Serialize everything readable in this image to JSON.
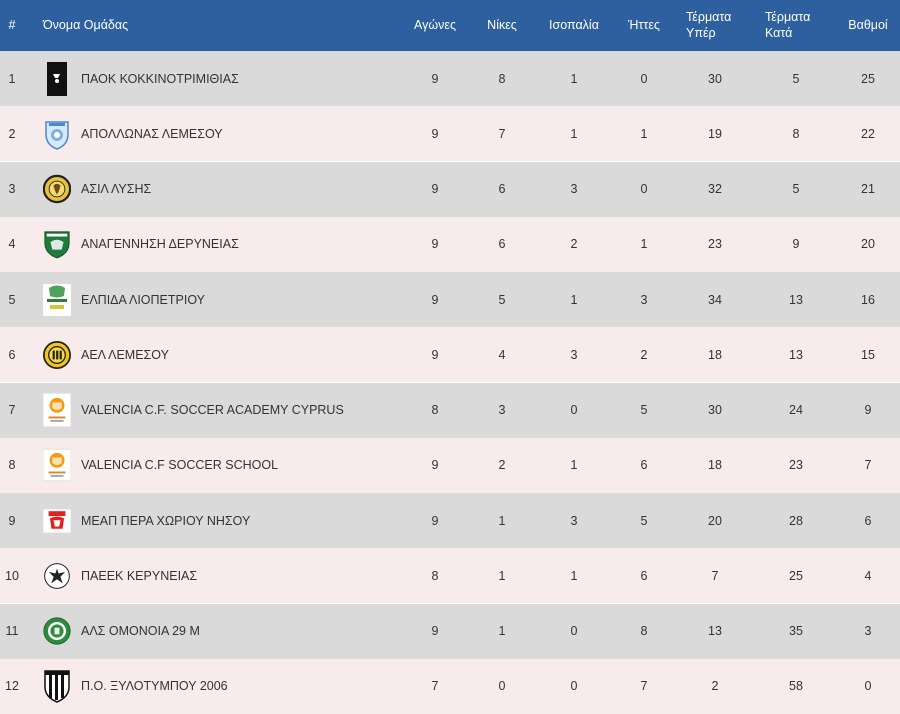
{
  "header": {
    "rank": "#",
    "team": "Όνομα Ομάδας",
    "played": "Αγώνες",
    "wins": "Νίκες",
    "draws": "Ισοπαλία",
    "losses": "Ήττες",
    "goals_for_1": "Τέρματα",
    "goals_for_2": "Υπέρ",
    "goals_against_1": "Τέρματα",
    "goals_against_2": "Κατά",
    "points": "Βαθμοί"
  },
  "colors": {
    "header_bg": "#2e5f9f",
    "row_odd": "#dadada",
    "row_even": "#f8ebeb"
  },
  "rows": [
    {
      "rank": "1",
      "team": "ΠΑΟΚ ΚΟΚΚΙΝΟΤΡΙΜΙΘΙΑΣ",
      "logo": "paok-badge",
      "played": "9",
      "wins": "8",
      "draws": "1",
      "losses": "0",
      "gf": "30",
      "ga": "5",
      "pts": "25"
    },
    {
      "rank": "2",
      "team": "ΑΠΟΛΛΩΝΑΣ ΛΕΜΕΣΟΥ",
      "logo": "apollon-badge",
      "played": "9",
      "wins": "7",
      "draws": "1",
      "losses": "1",
      "gf": "19",
      "ga": "8",
      "pts": "22"
    },
    {
      "rank": "3",
      "team": "ΑΣΙΛ ΛΥΣΗΣ",
      "logo": "asil-badge",
      "played": "9",
      "wins": "6",
      "draws": "3",
      "losses": "0",
      "gf": "32",
      "ga": "5",
      "pts": "21"
    },
    {
      "rank": "4",
      "team": "ΑΝΑΓΕΝΝΗΣΗ ΔΕΡΥΝΕΙΑΣ",
      "logo": "anagennisi-badge",
      "played": "9",
      "wins": "6",
      "draws": "2",
      "losses": "1",
      "gf": "23",
      "ga": "9",
      "pts": "20"
    },
    {
      "rank": "5",
      "team": "ΕΛΠΙΔΑ ΛΙΟΠΕΤΡΙΟΥ",
      "logo": "elpida-badge",
      "played": "9",
      "wins": "5",
      "draws": "1",
      "losses": "3",
      "gf": "34",
      "ga": "13",
      "pts": "16"
    },
    {
      "rank": "6",
      "team": "ΑΕΛ ΛΕΜΕΣΟΥ",
      "logo": "ael-badge",
      "played": "9",
      "wins": "4",
      "draws": "3",
      "losses": "2",
      "gf": "18",
      "ga": "13",
      "pts": "15"
    },
    {
      "rank": "7",
      "team": "VALENCIA C.F. SOCCER ACADEMY CYPRUS",
      "logo": "valencia-academy-badge",
      "played": "8",
      "wins": "3",
      "draws": "0",
      "losses": "5",
      "gf": "30",
      "ga": "24",
      "pts": "9"
    },
    {
      "rank": "8",
      "team": "VALENCIA C.F SOCCER SCHOOL",
      "logo": "valencia-school-badge",
      "played": "9",
      "wins": "2",
      "draws": "1",
      "losses": "6",
      "gf": "18",
      "ga": "23",
      "pts": "7"
    },
    {
      "rank": "9",
      "team": "ΜΕΑΠ ΠΕΡΑ ΧΩΡΙΟΥ ΝΗΣΟΥ",
      "logo": "meap-badge",
      "played": "9",
      "wins": "1",
      "draws": "3",
      "losses": "5",
      "gf": "20",
      "ga": "28",
      "pts": "6"
    },
    {
      "rank": "10",
      "team": "ΠΑΕΕΚ ΚΕΡΥΝΕΙΑΣ",
      "logo": "paeek-badge",
      "played": "8",
      "wins": "1",
      "draws": "1",
      "losses": "6",
      "gf": "7",
      "ga": "25",
      "pts": "4"
    },
    {
      "rank": "11",
      "team": "ΑΛΣ ΟΜΟΝΟΙΑ 29 Μ",
      "logo": "omonoia-badge",
      "played": "9",
      "wins": "1",
      "draws": "0",
      "losses": "8",
      "gf": "13",
      "ga": "35",
      "pts": "3"
    },
    {
      "rank": "12",
      "team": "Π.Ο. ΞΥΛΟΤΥΜΠΟΥ 2006",
      "logo": "xylotymbou-badge",
      "played": "7",
      "wins": "0",
      "draws": "0",
      "losses": "7",
      "gf": "2",
      "ga": "58",
      "pts": "0"
    }
  ]
}
